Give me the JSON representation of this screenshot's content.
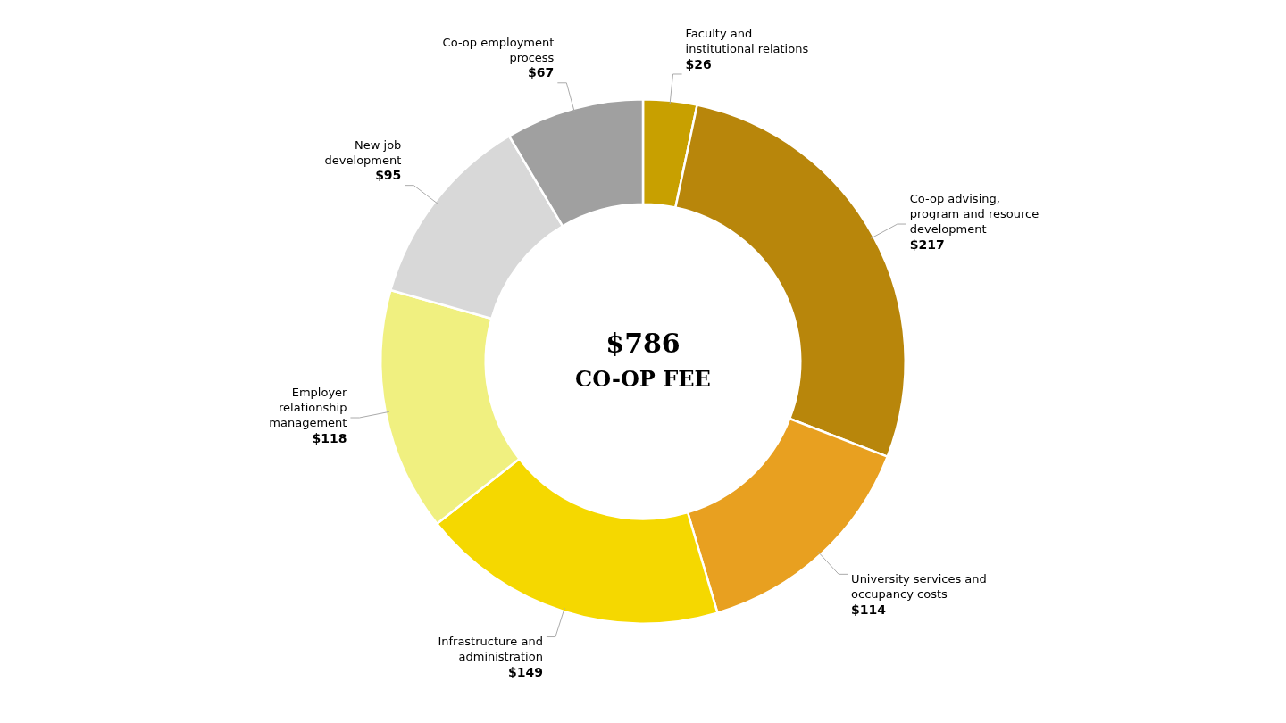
{
  "chart_data": {
    "type": "doughnut",
    "title": "$786",
    "subtitle": "CO-OP FEE",
    "categories": [
      "Faculty and\ninstitutional relations",
      "Co-op advising,\nprogram and resource\ndevelopment",
      "University services and\noccupancy costs",
      "Infrastructure and\nadministration",
      "Employer\nrelationship\nmanagement",
      "New job\ndevelopment",
      "Co-op employment\nprocess"
    ],
    "values": [
      26,
      217,
      114,
      149,
      118,
      95,
      67
    ],
    "value_labels": [
      "$26",
      "$217",
      "$114",
      "$149",
      "$118",
      "$95",
      "$67"
    ],
    "colors": [
      "#c8a000",
      "#b8860b",
      "#e8a020",
      "#f5d800",
      "#f0f080",
      "#d8d8d8",
      "#a0a0a0"
    ],
    "data_labels": true
  }
}
